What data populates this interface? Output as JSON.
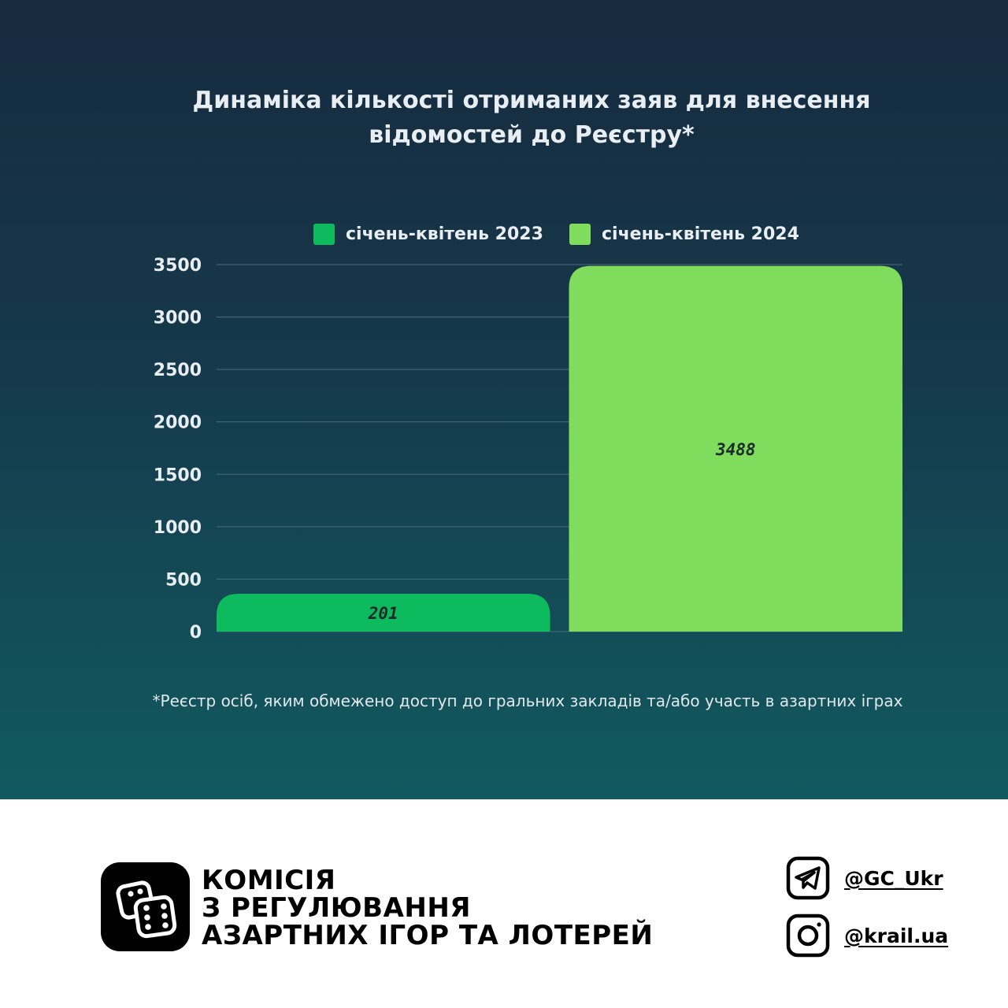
{
  "title": {
    "line1": "Динаміка кількості отриманих заяв для внесення",
    "line2": "відомостей до Реєстру*"
  },
  "legend": [
    {
      "label": "січень-квітень 2023",
      "color": "#0dbb5e"
    },
    {
      "label": "січень-квітень 2024",
      "color": "#7fdc5c"
    }
  ],
  "chart_data": {
    "type": "bar",
    "title": "Динаміка кількості отриманих заяв для внесення відомостей до Реєстру*",
    "categories": [
      "січень-квітень 2023",
      "січень-квітень 2024"
    ],
    "values": [
      201,
      3488
    ],
    "data_labels": [
      "201",
      "3488"
    ],
    "colors": [
      "#0dbb5e",
      "#7fdc5c"
    ],
    "ylim": [
      0,
      3500
    ],
    "yticks": [
      0,
      500,
      1000,
      1500,
      2000,
      2500,
      3000,
      3500
    ],
    "ytick_labels": [
      "0",
      "500",
      "1000",
      "1500",
      "2000",
      "2500",
      "3000",
      "3500"
    ],
    "xlabel": "",
    "ylabel": "",
    "grid": true,
    "legend_position": "top"
  },
  "footnote": "*Реєстр осіб, яким обмежено доступ до гральних закладів та/або участь в азартних іграх",
  "footer": {
    "org_name": [
      "КОМІСІЯ",
      "З РЕГУЛЮВАННЯ",
      "АЗАРТНИХ ІГОР ТА ЛОТЕРЕЙ"
    ],
    "logo_icon": "dice-icon",
    "social": [
      {
        "icon": "telegram-icon",
        "handle": "@GC_Ukr"
      },
      {
        "icon": "instagram-icon",
        "handle": "@krail.ua"
      }
    ]
  },
  "colors": {
    "background_top": "#172a3e",
    "background_bottom": "#115a60",
    "text_light": "#e9eef2",
    "gridline": "#4d6b78"
  }
}
